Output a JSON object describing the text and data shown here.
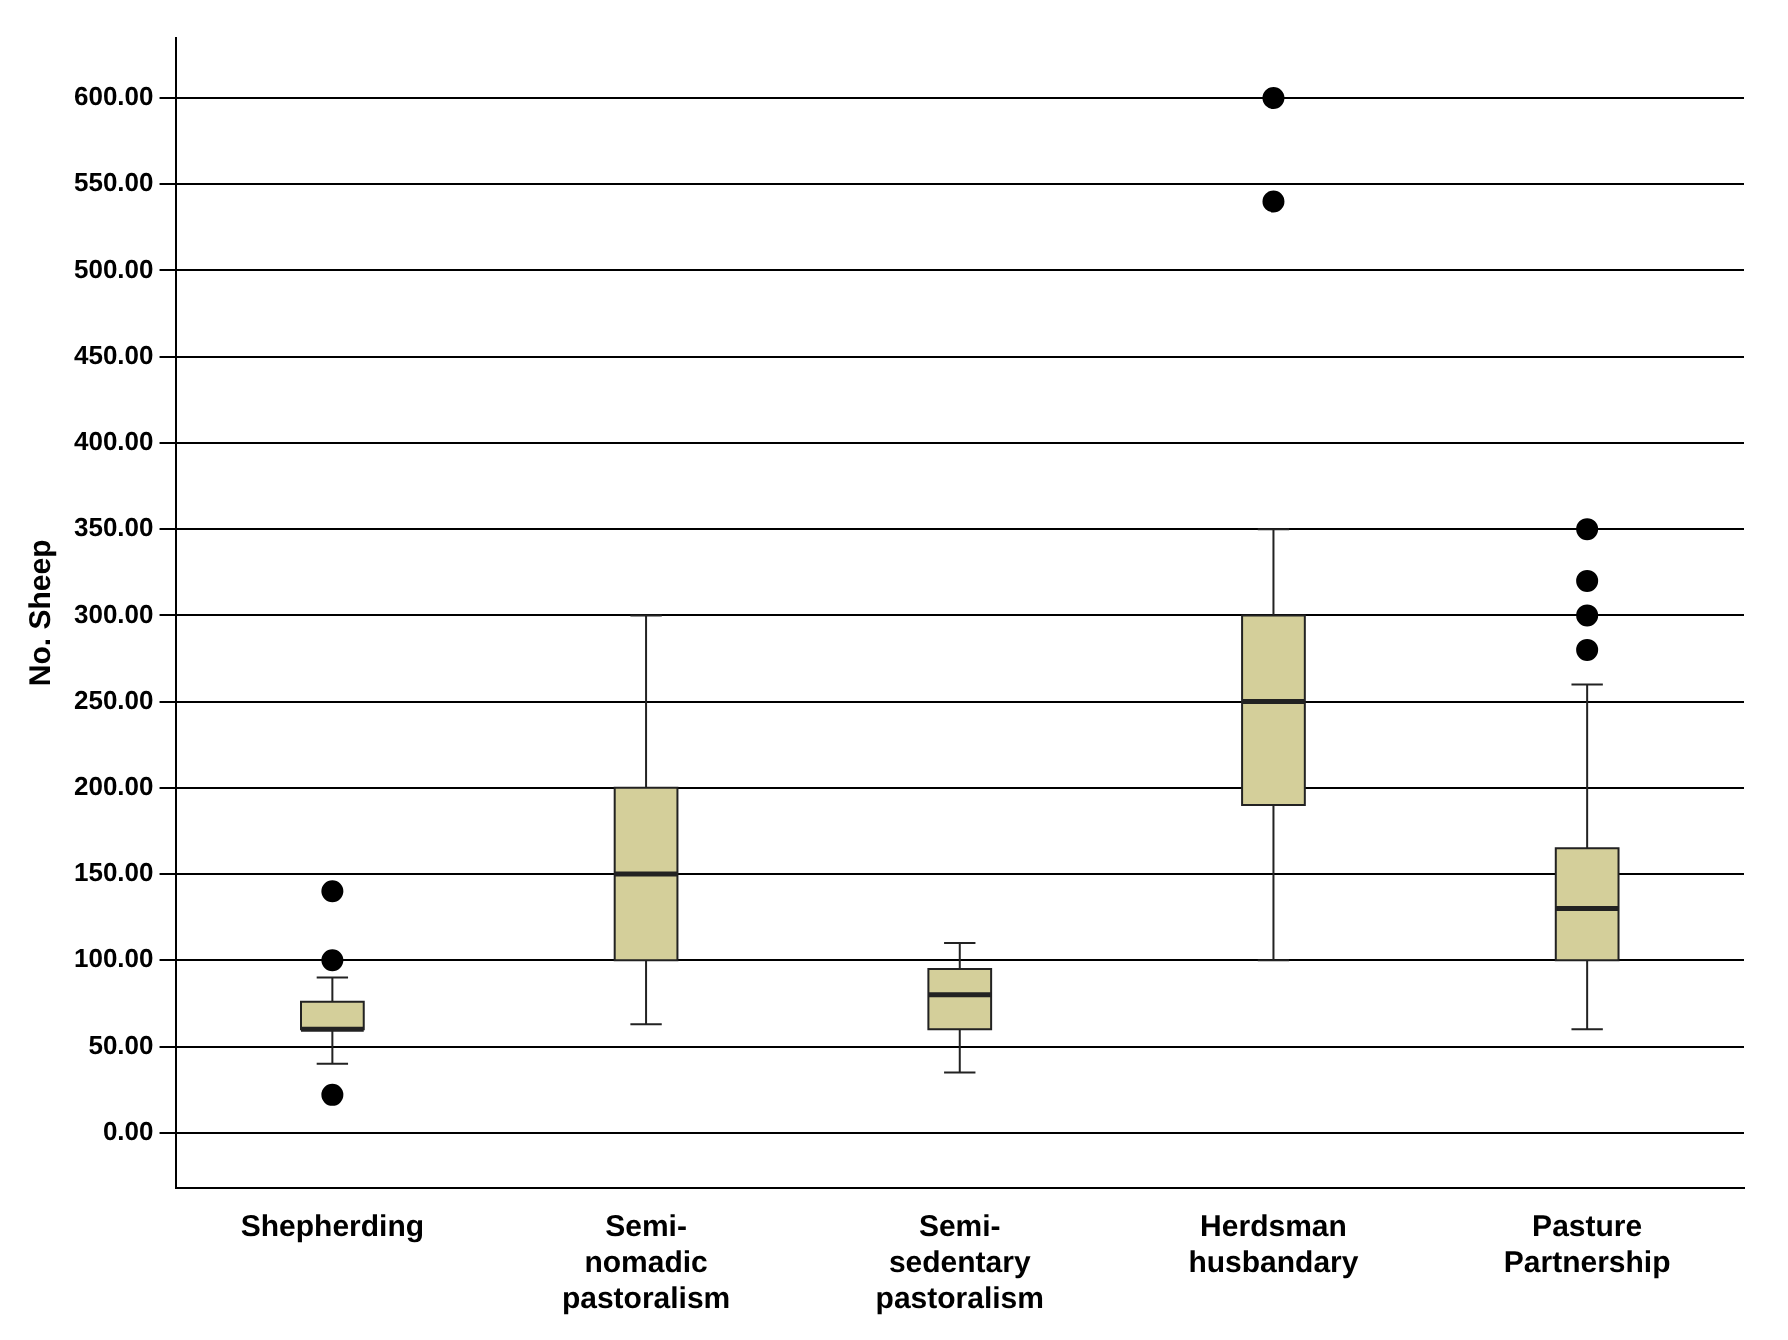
{
  "chart_data": {
    "type": "box",
    "ylabel": "No. Sheep",
    "categories": [
      "Shepherding",
      "Semi-nomadic pastoralism",
      "Semi-sedentary pastoralism",
      "Herdsman husbandary",
      "Pasture Partnership"
    ],
    "color": "#d4cf9a",
    "boxes": [
      {
        "low": 40,
        "q1": 60,
        "median": 60,
        "q3": 76,
        "high": 90,
        "outliers": [
          22,
          100,
          140
        ]
      },
      {
        "low": 63,
        "q1": 100,
        "median": 150,
        "q3": 200,
        "high": 300
      },
      {
        "low": 35,
        "q1": 60,
        "median": 80,
        "q3": 95,
        "high": 110
      },
      {
        "low": 100,
        "q1": 190,
        "median": 250,
        "q3": 300,
        "high": 350,
        "outliers": [
          540,
          600
        ]
      },
      {
        "low": 60,
        "q1": 100,
        "median": 130,
        "q3": 165,
        "high": 260,
        "outliers": [
          280,
          300,
          320,
          350
        ]
      }
    ],
    "ylim": [
      -32,
      635
    ],
    "yticks": [
      {
        "value": 0,
        "label": "0.00"
      },
      {
        "value": 50,
        "label": "50.00"
      },
      {
        "value": 100,
        "label": "100.00"
      },
      {
        "value": 150,
        "label": "150.00"
      },
      {
        "value": 200,
        "label": "200.00"
      },
      {
        "value": 250,
        "label": "250.00"
      },
      {
        "value": 300,
        "label": "300.00"
      },
      {
        "value": 350,
        "label": "350.00"
      },
      {
        "value": 400,
        "label": "400.00"
      },
      {
        "value": 450,
        "label": "450.00"
      },
      {
        "value": 500,
        "label": "500.00"
      },
      {
        "value": 550,
        "label": "550.00"
      },
      {
        "value": 600,
        "label": "600.00"
      }
    ],
    "grid": "y",
    "legend": false
  }
}
